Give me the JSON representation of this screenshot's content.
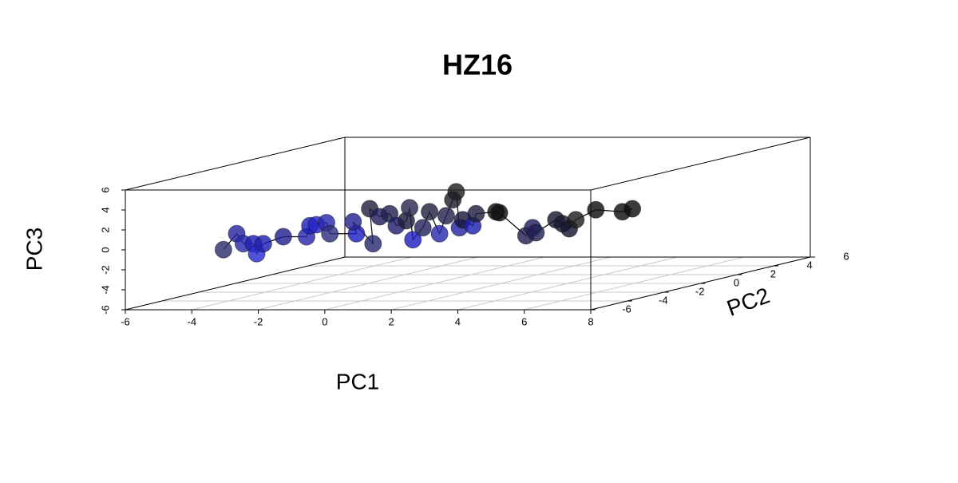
{
  "chart_data": {
    "type": "scatter3d",
    "title": "HZ16",
    "xlabel": "PC1",
    "ylabel": "PC2",
    "zlabel": "PC3",
    "xlim": [
      -6,
      8
    ],
    "ylim": [
      -6,
      6
    ],
    "zlim": [
      -6,
      6
    ],
    "xticks": [
      -6,
      -4,
      -2,
      0,
      2,
      4,
      6,
      8
    ],
    "yticks": [
      -6,
      -4,
      -2,
      0,
      2,
      4,
      6
    ],
    "zticks": [
      -6,
      -4,
      -2,
      0,
      2,
      4,
      6
    ],
    "grid": true,
    "line_color": "#000000",
    "series": [
      {
        "x": [
          -4.7,
          -4.3,
          -4.1,
          -3.8,
          -3.7,
          -3.5,
          -2.9,
          -2.2,
          -2.1,
          -1.9,
          -1.6,
          -1.5,
          -0.7,
          -0.8,
          -0.2,
          -0.3,
          0.0,
          0.3,
          0.5,
          0.8,
          0.9,
          1.0,
          1.3,
          1.5,
          1.8,
          2.0,
          2.2,
          2.3,
          2.4,
          2.5,
          2.8,
          2.9,
          3.5,
          3.6,
          4.4,
          4.6,
          4.7,
          5.3,
          5.5,
          5.7,
          5.9,
          6.5,
          7.3,
          7.6
        ],
        "y": [
          -3,
          -3,
          -3,
          -3,
          -3,
          -3,
          -3,
          -3,
          -3,
          -3,
          -3,
          -3,
          -3,
          -3,
          -3,
          -3,
          -3,
          -3,
          -3,
          -3,
          -3,
          -3,
          -3,
          -3,
          -3,
          -3,
          -3,
          -3,
          -3,
          -3,
          -3,
          -3,
          -3,
          -3,
          -3,
          -3,
          -3,
          -3,
          -3,
          -3,
          -3,
          -3,
          -3,
          -3
        ],
        "z": [
          -1.3,
          0.3,
          -0.7,
          -0.7,
          -1.7,
          -0.7,
          0.0,
          0.0,
          1.1,
          1.2,
          1.4,
          0.3,
          0.3,
          1.5,
          -0.7,
          2.8,
          2.0,
          2.3,
          1.1,
          1.6,
          2.9,
          -0.3,
          0.9,
          2.5,
          0.3,
          2.1,
          3.7,
          4.5,
          0.9,
          1.7,
          1.1,
          2.3,
          2.5,
          2.4,
          0.1,
          0.9,
          0.4,
          1.7,
          1.3,
          0.8,
          1.7,
          2.7,
          2.5,
          2.8
        ],
        "colors": [
          "#303070",
          "#2525a0",
          "#2a2ab0",
          "#2020b8",
          "#2a2ad0",
          "#2020b0",
          "#222290",
          "#2828b0",
          "#2020c0",
          "#2525c8",
          "#2a2ab0",
          "#303080",
          "#2020c0",
          "#252590",
          "#2a2a70",
          "#222240",
          "#202060",
          "#222250",
          "#202070",
          "#1e1e40",
          "#2a2a50",
          "#2020c0",
          "#252560",
          "#222240",
          "#2a2ab0",
          "#252550",
          "#202030",
          "#202020",
          "#2525a0",
          "#1a1a40",
          "#2020b0",
          "#202040",
          "#101010",
          "#101010",
          "#202050",
          "#202060",
          "#202050",
          "#181830",
          "#181830",
          "#151530",
          "#202020",
          "#101010",
          "#101010",
          "#101010"
        ]
      }
    ]
  }
}
